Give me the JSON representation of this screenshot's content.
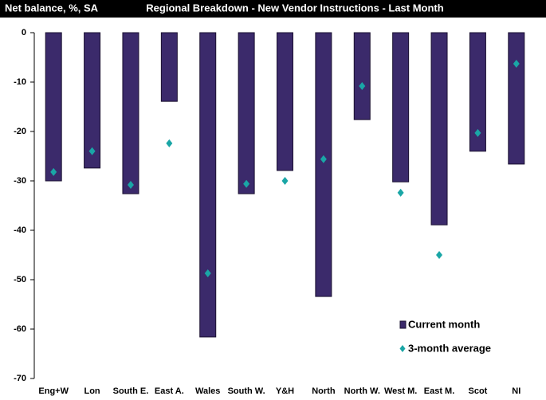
{
  "chart_data": {
    "type": "bar",
    "ylabel": "Net balance, %, SA",
    "title": "Regional Breakdown - New Vendor Instructions - Last Month",
    "categories": [
      "Eng+W",
      "Lon",
      "South E.",
      "East A.",
      "Wales",
      "South W.",
      "Y&H",
      "North",
      "North W.",
      "West M.",
      "East M.",
      "Scot",
      "NI"
    ],
    "series": [
      {
        "name": "Current month",
        "color": "#3b2a6b",
        "values": [
          -30,
          -27.4,
          -32.6,
          -13.9,
          -61.6,
          -32.6,
          -27.9,
          -53.4,
          -17.6,
          -30.2,
          -38.9,
          -24,
          -26.6
        ]
      },
      {
        "name": "3-month average",
        "color": "#1aa6a6",
        "values": [
          -28.2,
          -24,
          -30.8,
          -22.4,
          -48.7,
          -30.6,
          -30,
          -25.6,
          -10.8,
          -32.4,
          -45,
          -20.3,
          -6.3
        ]
      }
    ],
    "ylim": [
      -70,
      0
    ],
    "yticks": [
      0,
      -10,
      -20,
      -30,
      -40,
      -50,
      -60,
      -70
    ],
    "grid": false
  }
}
